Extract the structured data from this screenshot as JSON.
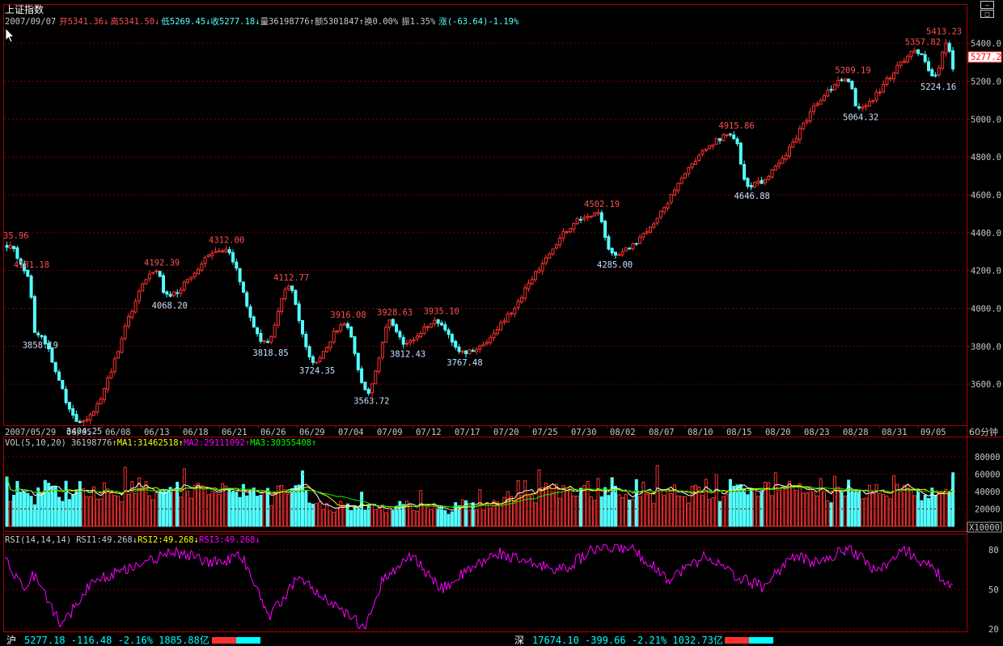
{
  "title": "上证指数",
  "info_bar": {
    "date": "2007/09/07",
    "open_label": "开",
    "open": "5341.36",
    "high_label": "高",
    "high": "5341.50",
    "low_label": "低",
    "low": "5269.45",
    "close_label": "收",
    "close": "5277.18",
    "volume_label": "量",
    "volume": "36198776",
    "amount_label": "额",
    "amount": "5301847",
    "turnover_label": "换",
    "turnover": "0.00%",
    "amplitude_label": "振",
    "amplitude": "1.35%",
    "change_label": "涨",
    "change": "(-63.64)-1.19%"
  },
  "price_axis_labels": [
    "5400.0",
    "5200.0",
    "5000.0",
    "4800.0",
    "4600.0",
    "4400.0",
    "4200.0",
    "4000.0",
    "3800.0",
    "3600.0"
  ],
  "current_price_tag": "5277.2",
  "period_label": "60分钟",
  "date_labels": [
    "2007/05/29",
    "06/05",
    "06/08",
    "06/13",
    "06/18",
    "06/21",
    "06/26",
    "06/29",
    "07/04",
    "07/09",
    "07/12",
    "07/17",
    "07/20",
    "07/25",
    "07/30",
    "08/02",
    "08/07",
    "08/10",
    "08/15",
    "08/20",
    "08/23",
    "08/28",
    "08/31",
    "09/05"
  ],
  "price_annotations": [
    {
      "text": "35.96",
      "kind": "high"
    },
    {
      "text": "4181.18",
      "kind": "high"
    },
    {
      "text": "3858.19",
      "kind": "low"
    },
    {
      "text": "3404.25",
      "kind": "low"
    },
    {
      "text": "4192.39",
      "kind": "high"
    },
    {
      "text": "4068.20",
      "kind": "low"
    },
    {
      "text": "4312.00",
      "kind": "high"
    },
    {
      "text": "3818.85",
      "kind": "low"
    },
    {
      "text": "4112.77",
      "kind": "high"
    },
    {
      "text": "3724.35",
      "kind": "low"
    },
    {
      "text": "3916.08",
      "kind": "high"
    },
    {
      "text": "3563.72",
      "kind": "low"
    },
    {
      "text": "3928.63",
      "kind": "high"
    },
    {
      "text": "3812.43",
      "kind": "low"
    },
    {
      "text": "3935.10",
      "kind": "high"
    },
    {
      "text": "3767.48",
      "kind": "low"
    },
    {
      "text": "4502.19",
      "kind": "high"
    },
    {
      "text": "4285.00",
      "kind": "low"
    },
    {
      "text": "4915.86",
      "kind": "high"
    },
    {
      "text": "4646.88",
      "kind": "low"
    },
    {
      "text": "5209.19",
      "kind": "high"
    },
    {
      "text": "5064.32",
      "kind": "low"
    },
    {
      "text": "5357.82",
      "kind": "high"
    },
    {
      "text": "5413.23",
      "kind": "high"
    },
    {
      "text": "5224.16",
      "kind": "low"
    }
  ],
  "volume_panel": {
    "name": "VOL(5,10,20)",
    "value": "36198776",
    "ma1_label": "MA1:31462518",
    "ma2_label": "MA2:29111092",
    "ma3_label": "MA3:30355408",
    "axis_labels": [
      "80000",
      "60000",
      "40000",
      "20000"
    ],
    "unit": "X10000"
  },
  "rsi_panel": {
    "name": "RSI(14,14,14)",
    "rsi1_label": "RSI1:49.268",
    "rsi2_label": "RSI2:49.268",
    "rsi3_label": "RSI3:49.268",
    "axis_labels": [
      "80",
      "50",
      "20"
    ]
  },
  "status_bar": {
    "sh_label": "沪",
    "sh_text": "5277.18 -116.48 -2.16% 1885.88亿",
    "sz_label": "深",
    "sz_text": "17674.10 -399.66 -2.21% 1032.73亿"
  },
  "colors": {
    "up": "#ff3232",
    "down": "#54ffff",
    "grid": "#7a0000",
    "frame": "#b00000",
    "ma1": "#ffffff",
    "ma2": "#ffff00",
    "ma3": "#ff00ff",
    "ma4": "#00ff00",
    "rsi": "#ff00ff",
    "high_annotation": "#ff5050",
    "low_annotation": "#c8e0ff"
  },
  "chart_data": {
    "type": "candlestick",
    "title": "上证指数",
    "period": "60分钟",
    "ylim": [
      3400,
      5450
    ],
    "x_range": [
      "2007/05/29",
      "2007/09/07"
    ],
    "anchor_points": [
      {
        "date": "2007/05/29",
        "price": 4335.96,
        "label": "35.96"
      },
      {
        "date": "2007/05/30",
        "price": 4181.18
      },
      {
        "date": "2007/05/31",
        "price": 3858.19
      },
      {
        "date": "2007/06/05",
        "price": 3404.25
      },
      {
        "date": "2007/06/13",
        "price": 4192.39
      },
      {
        "date": "2007/06/14",
        "price": 4068.2
      },
      {
        "date": "2007/06/20",
        "price": 4312.0
      },
      {
        "date": "2007/06/25",
        "price": 3818.85
      },
      {
        "date": "2007/06/27",
        "price": 4112.77
      },
      {
        "date": "2007/06/29",
        "price": 3724.35
      },
      {
        "date": "2007/07/03",
        "price": 3916.08
      },
      {
        "date": "2007/07/06",
        "price": 3563.72
      },
      {
        "date": "2007/07/09",
        "price": 3928.63
      },
      {
        "date": "2007/07/10",
        "price": 3812.43
      },
      {
        "date": "2007/07/13",
        "price": 3935.1
      },
      {
        "date": "2007/07/16",
        "price": 3767.48
      },
      {
        "date": "2007/07/31",
        "price": 4502.19
      },
      {
        "date": "2007/08/01",
        "price": 4285.0
      },
      {
        "date": "2007/08/14",
        "price": 4915.86
      },
      {
        "date": "2007/08/16",
        "price": 4646.88
      },
      {
        "date": "2007/08/27",
        "price": 5209.19
      },
      {
        "date": "2007/08/28",
        "price": 5064.32
      },
      {
        "date": "2007/09/03",
        "price": 5357.82
      },
      {
        "date": "2007/09/06",
        "price": 5413.23
      },
      {
        "date": "2007/09/05",
        "price": 5224.16
      },
      {
        "date": "2007/09/07",
        "price": 5277.18
      }
    ],
    "last_bar": {
      "open": 5341.36,
      "high": 5341.5,
      "low": 5269.45,
      "close": 5277.18,
      "volume": 36198776
    },
    "volume": {
      "ylim": [
        0,
        90000
      ],
      "unit": "X10000",
      "ma": [
        31462518,
        29111092,
        30355408
      ]
    },
    "rsi": {
      "ylim": [
        20,
        85
      ],
      "values_last": [
        49.268,
        49.268,
        49.268
      ],
      "anchor_points": [
        [
          0,
          75
        ],
        [
          0.02,
          50
        ],
        [
          0.03,
          62
        ],
        [
          0.06,
          22
        ],
        [
          0.09,
          55
        ],
        [
          0.15,
          72
        ],
        [
          0.18,
          78
        ],
        [
          0.22,
          70
        ],
        [
          0.25,
          75
        ],
        [
          0.28,
          30
        ],
        [
          0.31,
          60
        ],
        [
          0.34,
          40
        ],
        [
          0.38,
          22
        ],
        [
          0.4,
          60
        ],
        [
          0.43,
          75
        ],
        [
          0.46,
          50
        ],
        [
          0.48,
          60
        ],
        [
          0.52,
          78
        ],
        [
          0.55,
          70
        ],
        [
          0.59,
          65
        ],
        [
          0.62,
          80
        ],
        [
          0.66,
          82
        ],
        [
          0.7,
          58
        ],
        [
          0.74,
          76
        ],
        [
          0.77,
          60
        ],
        [
          0.8,
          52
        ],
        [
          0.83,
          75
        ],
        [
          0.86,
          70
        ],
        [
          0.89,
          82
        ],
        [
          0.92,
          64
        ],
        [
          0.95,
          80
        ],
        [
          0.98,
          65
        ],
        [
          1.0,
          50
        ]
      ]
    }
  }
}
